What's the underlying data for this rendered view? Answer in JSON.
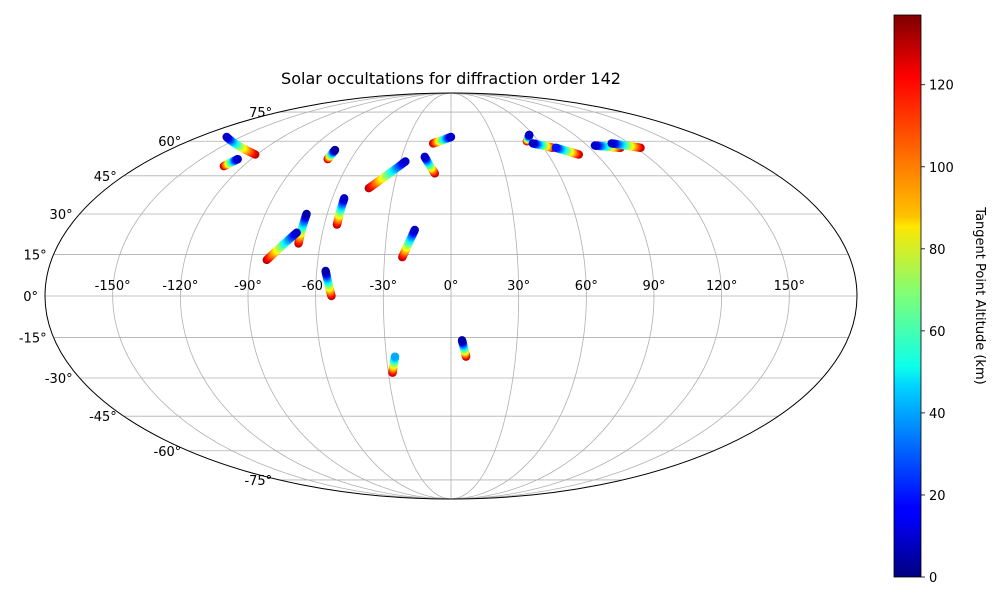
{
  "chart_data": {
    "type": "scatter",
    "projection": "mollweide",
    "title": "Solar occultations for diffraction order 142",
    "colorbar": {
      "label": "Tangent Point Altitude (km)",
      "colormap": "jet",
      "range": [
        0,
        137
      ],
      "ticks": [
        "0",
        "20",
        "40",
        "60",
        "80",
        "100",
        "120"
      ]
    },
    "lon_ticks": [
      "-150°",
      "-120°",
      "-90°",
      "-60°",
      "-30°",
      "0°",
      "30°",
      "60°",
      "90°",
      "120°",
      "150°"
    ],
    "lat_ticks": [
      "-75°",
      "-60°",
      "-45°",
      "-30°",
      "-15°",
      "0°",
      "15°",
      "30°",
      "45°",
      "60°",
      "75°"
    ],
    "grid": true,
    "x_unit": "longitude (degrees)",
    "y_unit": "latitude (degrees)",
    "c_unit": "tangent point altitude (km)",
    "tracks": [
      {
        "lon_start": -160,
        "lat_start": 62,
        "lon_end": -121,
        "lat_end": 54,
        "alt_start": 10,
        "alt_end": 130
      },
      {
        "lon_start": -128,
        "lat_start": 52,
        "lon_end": -131,
        "lat_end": 49,
        "alt_start": 10,
        "alt_end": 130
      },
      {
        "lon_start": -74,
        "lat_start": 56,
        "lon_end": -74,
        "lat_end": 52,
        "alt_start": 5,
        "alt_end": 130
      },
      {
        "lon_start": -70,
        "lat_start": 30,
        "lon_end": -70,
        "lat_end": 19,
        "alt_start": 5,
        "alt_end": 130
      },
      {
        "lon_start": -72,
        "lat_start": 23,
        "lon_end": -83,
        "lat_end": 13,
        "alt_start": 10,
        "alt_end": 130
      },
      {
        "lon_start": -54,
        "lat_start": 36,
        "lon_end": -54,
        "lat_end": 26,
        "alt_start": 10,
        "alt_end": 130
      },
      {
        "lon_start": -27,
        "lat_start": 51,
        "lon_end": -43,
        "lat_end": 40,
        "alt_start": 10,
        "alt_end": 130
      },
      {
        "lon_start": -17,
        "lat_start": 24,
        "lon_end": -22,
        "lat_end": 14,
        "alt_start": 10,
        "alt_end": 130
      },
      {
        "lon_start": -56,
        "lat_start": 9,
        "lon_end": -53,
        "lat_end": 0,
        "alt_start": 5,
        "alt_end": 130
      },
      {
        "lon_start": 0,
        "lat_start": 62,
        "lon_end": -12,
        "lat_end": 59,
        "alt_start": 10,
        "alt_end": 130
      },
      {
        "lon_start": -16,
        "lat_start": 53,
        "lon_end": -9,
        "lat_end": 46,
        "alt_start": 10,
        "alt_end": 130
      },
      {
        "lon_start": 5,
        "lat_start": -16,
        "lon_end": 7,
        "lat_end": -22,
        "alt_start": 5,
        "alt_end": 130
      },
      {
        "lon_start": -26,
        "lat_start": -22,
        "lon_end": -28,
        "lat_end": -28,
        "alt_start": 40,
        "alt_end": 130
      },
      {
        "lon_start": 57,
        "lat_start": 63,
        "lon_end": 52,
        "lat_end": 60,
        "alt_start": 10,
        "alt_end": 130
      },
      {
        "lon_start": 55,
        "lat_start": 59,
        "lon_end": 66,
        "lat_end": 57,
        "alt_start": 10,
        "alt_end": 130
      },
      {
        "lon_start": 68,
        "lat_start": 57,
        "lon_end": 79,
        "lat_end": 54,
        "alt_start": 20,
        "alt_end": 130
      },
      {
        "lon_start": 95,
        "lat_start": 58,
        "lon_end": 110,
        "lat_end": 57,
        "alt_start": 10,
        "alt_end": 130
      },
      {
        "lon_start": 108,
        "lat_start": 59,
        "lon_end": 123,
        "lat_end": 57,
        "alt_start": 10,
        "alt_end": 130
      }
    ]
  }
}
